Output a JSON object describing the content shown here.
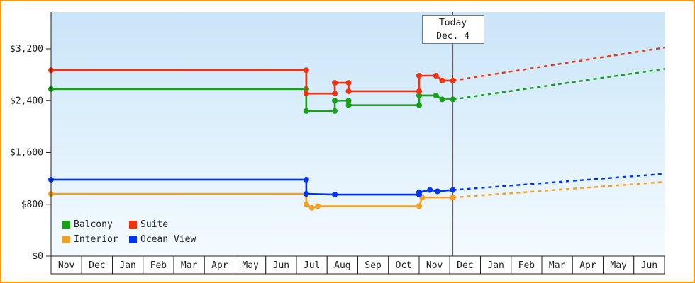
{
  "window": {
    "border_color": "#ff9900",
    "plot_bg_top": "#c9e5f8",
    "plot_bg_bottom": "#f4fbff"
  },
  "today_marker": {
    "line1": "Today",
    "line2": "Dec. 4",
    "month_index": 13.1
  },
  "chart_data": {
    "type": "line",
    "x_axis": {
      "tick_labels": [
        "Nov",
        "Dec",
        "Jan",
        "Feb",
        "Mar",
        "Apr",
        "May",
        "Jun",
        "Jul",
        "Aug",
        "Sep",
        "Oct",
        "Nov",
        "Dec",
        "Jan",
        "Feb",
        "Mar",
        "Apr",
        "May",
        "Jun"
      ],
      "units_total": 20
    },
    "y_axis": {
      "tick_labels": [
        "$0",
        "$800",
        "$1,600",
        "$2,400",
        "$3,200"
      ],
      "tick_values": [
        0,
        800,
        1600,
        2400,
        3200
      ],
      "range": [
        0,
        3200
      ]
    },
    "legend": {
      "position": "bottom-left",
      "entries": [
        "Balcony",
        "Suite",
        "Interior",
        "Ocean View"
      ]
    },
    "series": [
      {
        "name": "Balcony",
        "color": "#18a018",
        "points": [
          [
            0,
            2580
          ],
          [
            8.32,
            2580
          ],
          [
            8.32,
            2240
          ],
          [
            9.25,
            2240
          ],
          [
            9.25,
            2400
          ],
          [
            9.7,
            2400
          ],
          [
            9.7,
            2330
          ],
          [
            12,
            2330
          ],
          [
            12,
            2480
          ],
          [
            12.55,
            2480
          ],
          [
            12.75,
            2420
          ],
          [
            13.1,
            2420
          ]
        ],
        "forecast": [
          [
            13.1,
            2420
          ],
          [
            20,
            2890
          ]
        ]
      },
      {
        "name": "Suite",
        "color": "#ee3311",
        "points": [
          [
            0,
            2870
          ],
          [
            8.32,
            2870
          ],
          [
            8.32,
            2510
          ],
          [
            9.25,
            2510
          ],
          [
            9.25,
            2675
          ],
          [
            9.7,
            2675
          ],
          [
            9.7,
            2545
          ],
          [
            12,
            2545
          ],
          [
            12,
            2785
          ],
          [
            12.55,
            2785
          ],
          [
            12.75,
            2710
          ],
          [
            13.1,
            2710
          ]
        ],
        "forecast": [
          [
            13.1,
            2710
          ],
          [
            20,
            3220
          ]
        ]
      },
      {
        "name": "Interior",
        "color": "#f2a024",
        "points": [
          [
            0,
            960
          ],
          [
            8.32,
            960
          ],
          [
            8.32,
            800
          ],
          [
            8.5,
            745
          ],
          [
            8.7,
            770
          ],
          [
            12,
            770
          ],
          [
            12.1,
            905
          ],
          [
            13.1,
            905
          ]
        ],
        "forecast": [
          [
            13.1,
            905
          ],
          [
            20,
            1145
          ]
        ]
      },
      {
        "name": "Ocean View",
        "color": "#0033ee",
        "points": [
          [
            0,
            1180
          ],
          [
            8.32,
            1180
          ],
          [
            8.32,
            960
          ],
          [
            9.25,
            950
          ],
          [
            12,
            950
          ],
          [
            12,
            985
          ],
          [
            12.35,
            1020
          ],
          [
            12.6,
            1000
          ],
          [
            13.1,
            1020
          ]
        ],
        "forecast": [
          [
            13.1,
            1020
          ],
          [
            20,
            1270
          ]
        ]
      }
    ],
    "grid": false
  }
}
